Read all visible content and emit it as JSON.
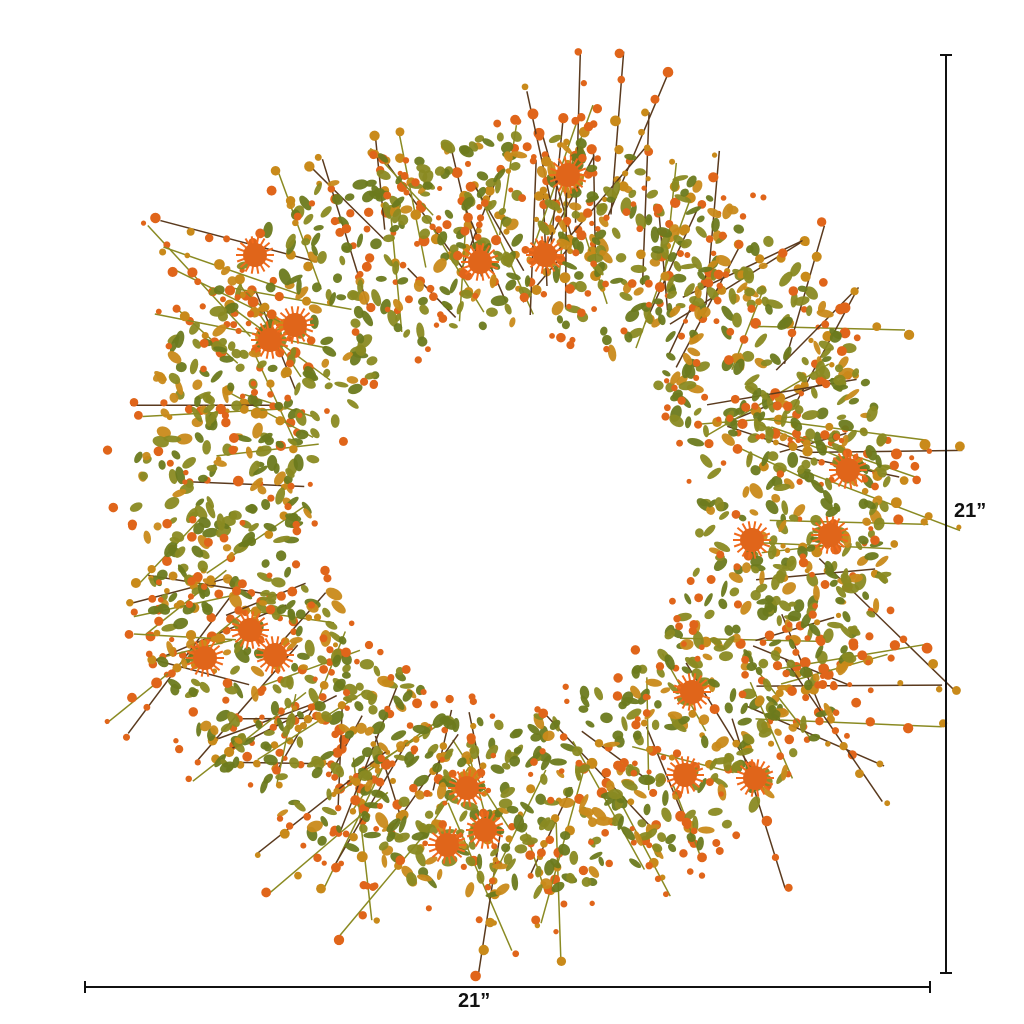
{
  "product": {
    "image": "autumn-fern-wreath-with-orange-thistle-flowers",
    "height_label": "21”",
    "width_label": "21”"
  },
  "colors": {
    "leaf_green": "#6b7a1e",
    "leaf_olive": "#8a8a22",
    "leaf_amber": "#c98a1a",
    "berry_orange": "#e0651a",
    "flower_orange": "#f06a1c",
    "twig_brown": "#5a3a1e"
  }
}
